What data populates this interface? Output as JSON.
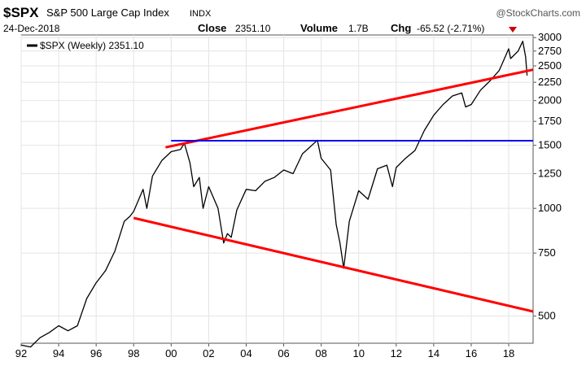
{
  "header": {
    "symbol": "$SPX",
    "name": "S&P 500 Large Cap Index",
    "exchange": "INDX",
    "date": "24-Dec-2018",
    "close_label": "Close",
    "close_value": "2351.10",
    "volume_label": "Volume",
    "volume_value": "1.7B",
    "chg_label": "Chg",
    "chg_value": "-65.52 (-2.71%)",
    "watermark": "@StockCharts.com"
  },
  "legend": {
    "label": "$SPX (Weekly) 2351.10"
  },
  "colors": {
    "price": "#000000",
    "trendline": "#ff0000",
    "support": "#0000ee",
    "down_arrow": "#cc0000",
    "grid": "#e4e4e4"
  },
  "chart_data": {
    "type": "line",
    "title": "$SPX S&P 500 Large Cap Index INDX",
    "xlabel": "",
    "ylabel": "",
    "y_scale": "log",
    "ylim": [
      420,
      3050
    ],
    "xlim": [
      1992.0,
      2019.3
    ],
    "x_ticks": [
      "92",
      "94",
      "96",
      "98",
      "00",
      "02",
      "04",
      "06",
      "08",
      "10",
      "12",
      "14",
      "16",
      "18"
    ],
    "x_tick_values": [
      1992,
      1994,
      1996,
      1998,
      2000,
      2002,
      2004,
      2006,
      2008,
      2010,
      2012,
      2014,
      2016,
      2018
    ],
    "y_ticks": [
      500,
      750,
      1000,
      1250,
      1500,
      1750,
      2000,
      2250,
      2500,
      2750,
      3000
    ],
    "series": [
      {
        "name": "$SPX (Weekly)",
        "x": [
          1992.0,
          1992.5,
          1993.0,
          1993.5,
          1994.0,
          1994.5,
          1995.0,
          1995.5,
          1996.0,
          1996.5,
          1997.0,
          1997.5,
          1997.8,
          1998.0,
          1998.5,
          1998.7,
          1999.0,
          1999.5,
          2000.0,
          2000.5,
          2000.7,
          2001.0,
          2001.2,
          2001.5,
          2001.7,
          2002.0,
          2002.5,
          2002.8,
          2003.0,
          2003.2,
          2003.5,
          2004.0,
          2004.5,
          2005.0,
          2005.5,
          2006.0,
          2006.5,
          2007.0,
          2007.5,
          2007.8,
          2008.0,
          2008.5,
          2008.8,
          2009.0,
          2009.2,
          2009.5,
          2010.0,
          2010.5,
          2011.0,
          2011.5,
          2011.8,
          2012.0,
          2012.5,
          2013.0,
          2013.5,
          2014.0,
          2014.5,
          2015.0,
          2015.5,
          2015.7,
          2016.0,
          2016.5,
          2017.0,
          2017.5,
          2018.0,
          2018.1,
          2018.5,
          2018.75,
          2018.9,
          2018.98
        ],
        "values": [
          415,
          410,
          435,
          450,
          470,
          455,
          470,
          560,
          620,
          670,
          760,
          920,
          950,
          980,
          1130,
          1000,
          1230,
          1360,
          1440,
          1460,
          1520,
          1340,
          1150,
          1220,
          1000,
          1150,
          1000,
          800,
          850,
          830,
          990,
          1130,
          1120,
          1190,
          1220,
          1280,
          1250,
          1420,
          1500,
          1550,
          1380,
          1280,
          900,
          800,
          680,
          920,
          1120,
          1060,
          1290,
          1320,
          1150,
          1300,
          1380,
          1450,
          1650,
          1820,
          1950,
          2060,
          2100,
          1920,
          1950,
          2140,
          2270,
          2430,
          2790,
          2620,
          2750,
          2930,
          2650,
          2351
        ]
      },
      {
        "name": "",
        "x": [
          1999.7,
          2019.3
        ],
        "values": [
          1480,
          2440
        ]
      },
      {
        "name": "",
        "x": [
          2000.0,
          2019.3
        ],
        "values": [
          1545,
          1545
        ]
      },
      {
        "name": "",
        "x": [
          1998.0,
          2019.3
        ],
        "values": [
          940,
          515
        ]
      }
    ]
  }
}
